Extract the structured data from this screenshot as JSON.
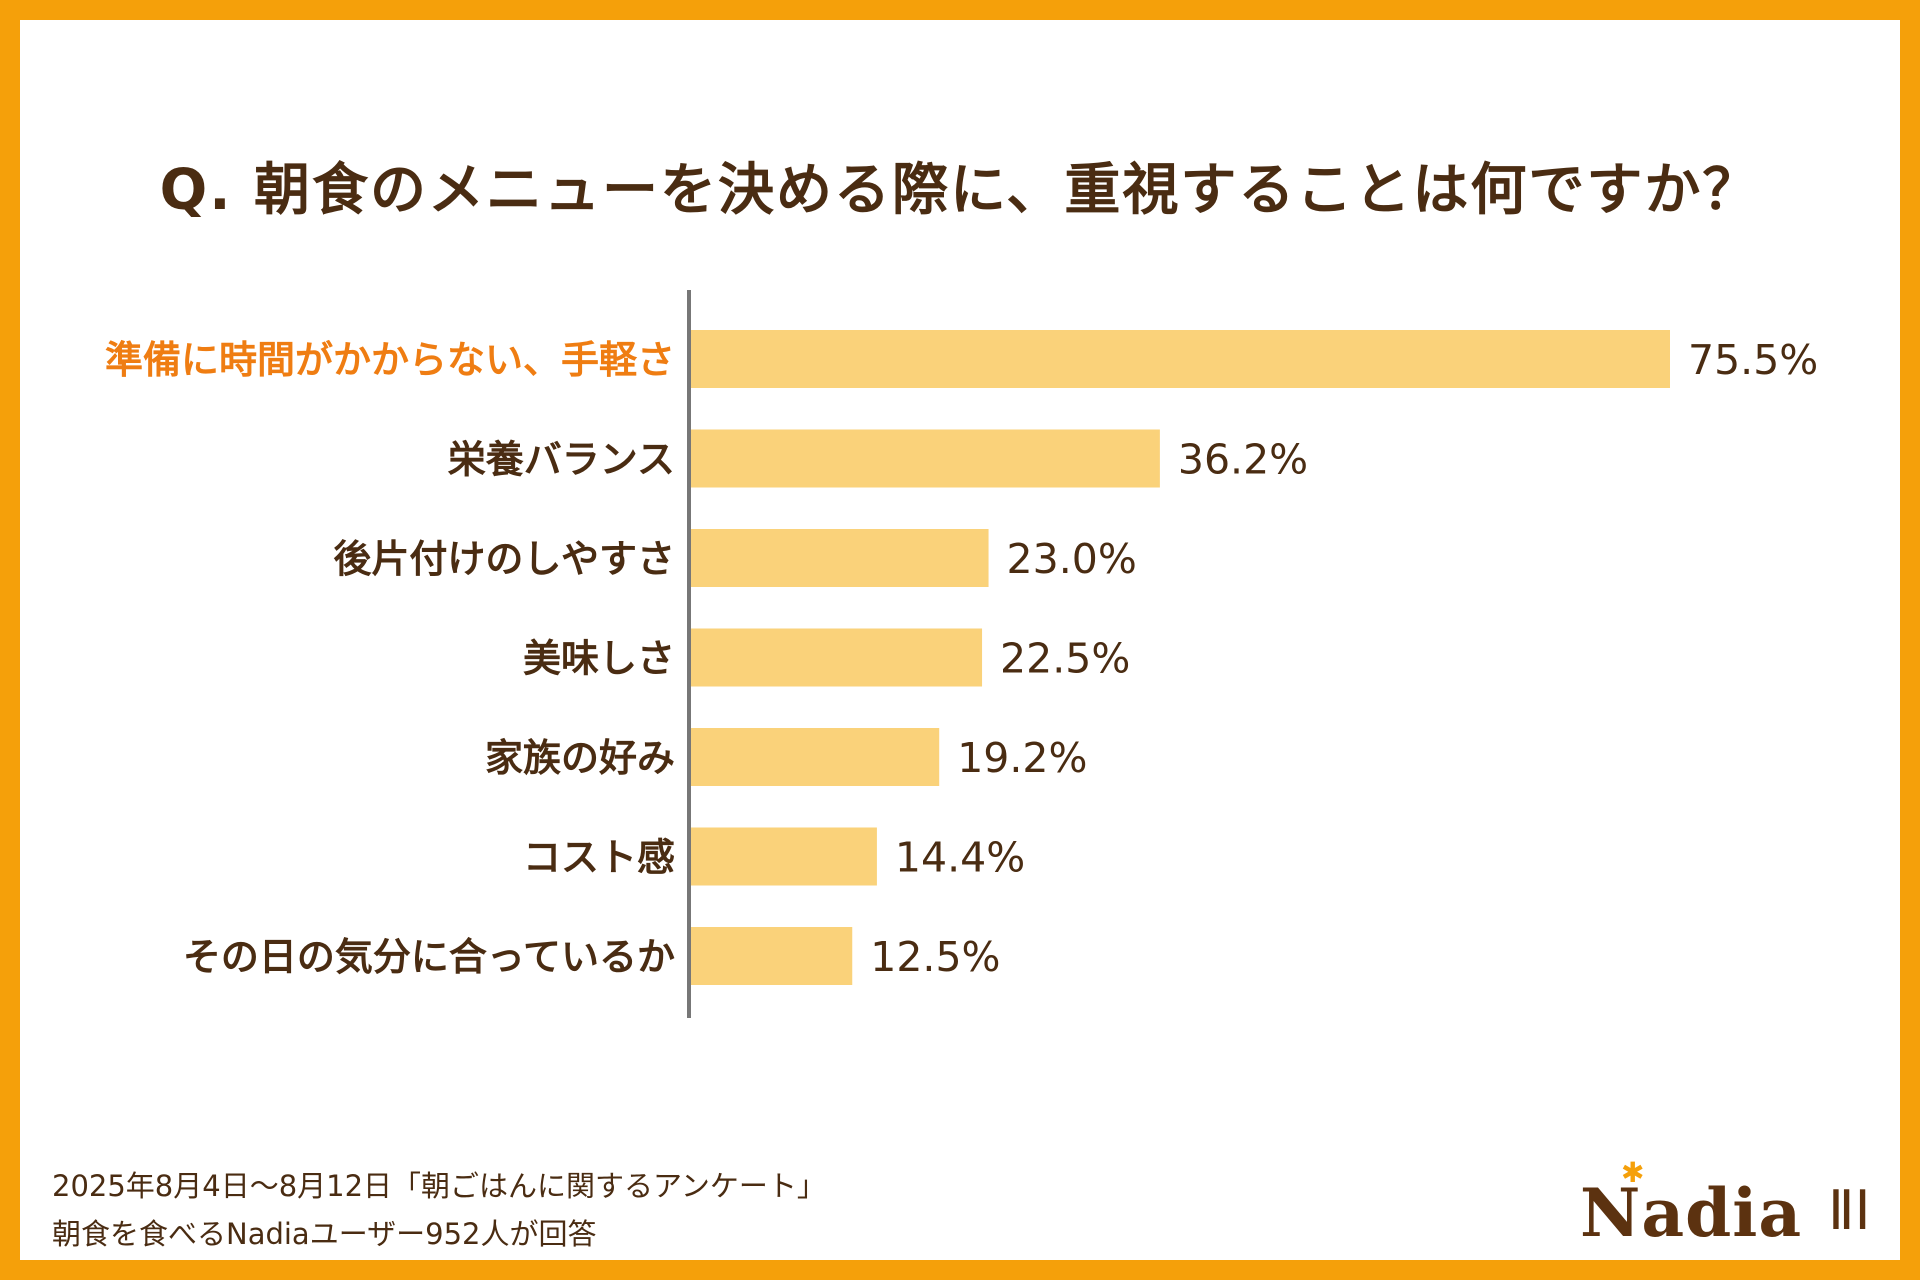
{
  "colors": {
    "frame": "#f5a00a",
    "bar": "#fad27a",
    "highlight_label": "#ef7d12",
    "text": "#4a2c12",
    "axis": "#777777"
  },
  "chart_data": {
    "type": "bar",
    "orientation": "horizontal",
    "title": "Q. 朝食のメニューを決める際に、重視することは何ですか？",
    "categories": [
      "準備に時間がかからない、手軽さ",
      "栄養バランス",
      "後片付けのしやすさ",
      "美味しさ",
      "家族の好み",
      "コスト感",
      "その日の気分に合っているか"
    ],
    "values": [
      75.5,
      36.2,
      23.0,
      22.5,
      19.2,
      14.4,
      12.5
    ],
    "value_labels": [
      "75.5%",
      "36.2%",
      "23.0%",
      "22.5%",
      "19.2%",
      "14.4%",
      "12.5%"
    ],
    "highlight_index": 0,
    "unit": "%",
    "xlim": [
      0,
      75.5
    ],
    "grid": false,
    "legend": "none"
  },
  "footnote": {
    "line1": "2025年8月4日～8月12日「朝ごはんに関するアンケート」",
    "line2": "朝食を食べるNadiaユーザー952人が回答"
  },
  "logo": {
    "text": "Nadia",
    "dot": "✱",
    "cutlery": "ⅡⅠ",
    "icon": "fork-knife-icon"
  }
}
